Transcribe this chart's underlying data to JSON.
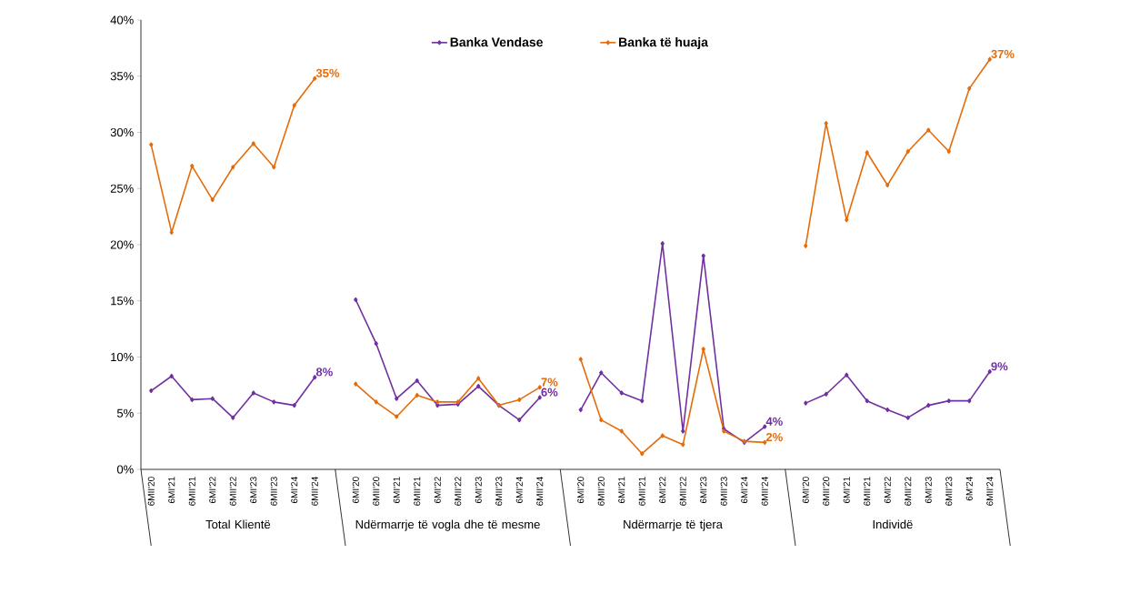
{
  "chart_data": {
    "type": "line",
    "categories": [
      "6MII'20",
      "6MI'21",
      "6MII'21",
      "6MI'22",
      "6MII'22",
      "6MI'23",
      "6MII'23",
      "6MI'24",
      "6MII'24",
      null,
      "6MI'20",
      "6MII'20",
      "6MI'21",
      "6MII'21",
      "6MI'22",
      "6MII'22",
      "6MI'23",
      "6MII'23",
      "6MI'24",
      "6MII'24",
      null,
      "6MI'20",
      "6MII'20",
      "6MI'21",
      "6MII'21",
      "6MI'22",
      "6MII'22",
      "6MI'23",
      "6MII'23",
      "6MI'24",
      "6MII'24",
      null,
      "6MI'20",
      "6MII'20",
      "6MI'21",
      "6MII'21",
      "6MI'22",
      "6MII'22",
      "6MI'23",
      "6MII'23",
      "6M'24",
      "6MII'24"
    ],
    "series": [
      {
        "name": "Banka Vendase",
        "color": "#7030a0",
        "values": [
          7.0,
          8.3,
          6.2,
          6.3,
          4.6,
          6.8,
          6.0,
          5.7,
          8.2,
          null,
          15.1,
          11.2,
          6.3,
          7.9,
          5.7,
          5.8,
          7.4,
          5.7,
          4.4,
          6.4,
          null,
          5.3,
          8.6,
          6.8,
          6.1,
          20.1,
          3.4,
          19.0,
          3.6,
          2.4,
          3.8,
          null,
          5.9,
          6.7,
          8.4,
          6.1,
          5.3,
          4.6,
          5.7,
          6.1,
          6.1,
          8.7
        ],
        "value_labels": [
          null,
          null,
          null,
          null,
          null,
          null,
          null,
          null,
          "8%",
          null,
          null,
          null,
          null,
          null,
          null,
          null,
          null,
          null,
          null,
          "6%",
          null,
          null,
          null,
          null,
          null,
          null,
          null,
          null,
          null,
          null,
          "4%",
          null,
          null,
          null,
          null,
          null,
          null,
          null,
          null,
          null,
          null,
          "9%"
        ]
      },
      {
        "name": "Banka të huaja",
        "color": "#e46c0a",
        "values": [
          28.9,
          21.1,
          27.0,
          24.0,
          26.9,
          29.0,
          26.9,
          32.4,
          34.8,
          null,
          7.6,
          6.0,
          4.7,
          6.6,
          6.0,
          6.0,
          8.1,
          5.7,
          6.2,
          7.3,
          null,
          9.8,
          4.4,
          3.4,
          1.4,
          3.0,
          2.2,
          10.7,
          3.4,
          2.5,
          2.4,
          null,
          19.9,
          30.8,
          22.2,
          28.2,
          25.3,
          28.3,
          30.2,
          28.3,
          33.9,
          36.5
        ],
        "value_labels": [
          null,
          null,
          null,
          null,
          null,
          null,
          null,
          null,
          "35%",
          null,
          null,
          null,
          null,
          null,
          null,
          null,
          null,
          null,
          null,
          "7%",
          null,
          null,
          null,
          null,
          null,
          null,
          null,
          null,
          null,
          null,
          "2%",
          null,
          null,
          null,
          null,
          null,
          null,
          null,
          null,
          null,
          null,
          "37%"
        ]
      }
    ],
    "ylim": [
      0,
      40
    ],
    "yticks": [
      {
        "value": 0,
        "label": "0%"
      },
      {
        "value": 5,
        "label": "5%"
      },
      {
        "value": 10,
        "label": "10%"
      },
      {
        "value": 15,
        "label": "15%"
      },
      {
        "value": 20,
        "label": "20%"
      },
      {
        "value": 25,
        "label": "25%"
      },
      {
        "value": 30,
        "label": "30%"
      },
      {
        "value": 35,
        "label": "35%"
      },
      {
        "value": 40,
        "label": "40%"
      }
    ],
    "annotations": [
      "Total Klientë",
      "Ndërmarrje të vogla dhe të mesme",
      "Ndërmarrje të tjera",
      "Individë"
    ],
    "legend": "top",
    "marker": "diamond",
    "line_style": "solid",
    "grid": false
  }
}
